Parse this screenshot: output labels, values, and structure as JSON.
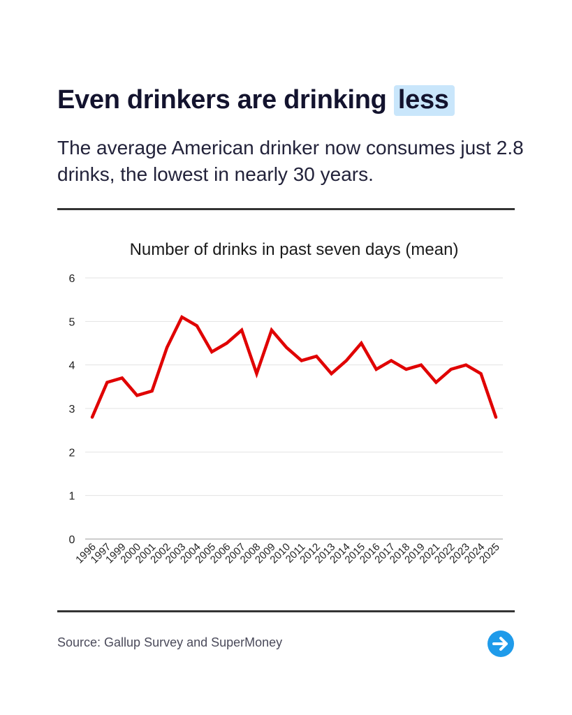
{
  "header": {
    "title_main": "Even drinkers are drinking",
    "title_highlight": "less",
    "subtitle": "The average American drinker now consumes just 2.8 drinks, the lowest in nearly 30 years."
  },
  "footer": {
    "source": "Source: Gallup Survey and SuperMoney",
    "next_icon": "arrow-right-circle-icon"
  },
  "colors": {
    "line": "#e00000",
    "highlight": "#c9e6fb",
    "accent": "#1f9bea"
  },
  "chart_data": {
    "type": "line",
    "title": "Number of drinks in past seven days (mean)",
    "xlabel": "",
    "ylabel": "",
    "ylim": [
      0,
      6
    ],
    "yticks": [
      0,
      1,
      2,
      3,
      4,
      5,
      6
    ],
    "grid": true,
    "categories": [
      "1996",
      "1997",
      "1999",
      "2000",
      "2001",
      "2002",
      "2003",
      "2004",
      "2005",
      "2006",
      "2007",
      "2008",
      "2009",
      "2010",
      "2011",
      "2012",
      "2013",
      "2014",
      "2015",
      "2016",
      "2017",
      "2018",
      "2019",
      "2021",
      "2022",
      "2023",
      "2024",
      "2025"
    ],
    "values": [
      2.8,
      3.6,
      3.7,
      3.3,
      3.4,
      4.4,
      5.1,
      4.9,
      4.3,
      4.5,
      4.8,
      3.8,
      4.8,
      4.4,
      4.1,
      4.2,
      3.8,
      4.1,
      4.5,
      3.9,
      4.1,
      3.9,
      4.0,
      3.6,
      3.9,
      4.0,
      3.8,
      2.8
    ]
  }
}
